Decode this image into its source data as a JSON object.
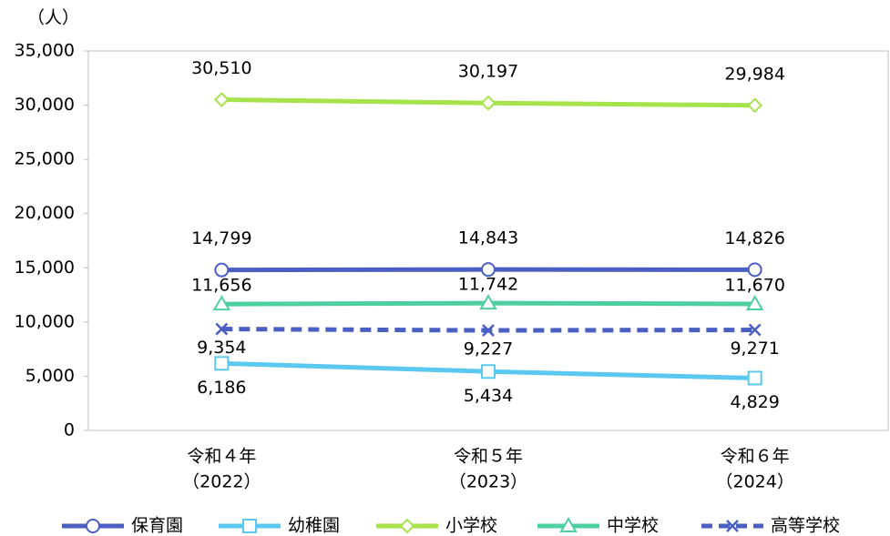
{
  "chart_data": {
    "type": "line",
    "y_label": "（人）",
    "categories": [
      "令和４年",
      "令和５年",
      "令和６年"
    ],
    "category_years": [
      "（2022）",
      "（2023）",
      "（2024）"
    ],
    "ylim": [
      0,
      35000
    ],
    "yticks": [
      0,
      {
        "value": 5000,
        "label": "5,000"
      },
      {
        "value": 10000,
        "label": "10,000"
      },
      {
        "value": 15000,
        "label": "15,000"
      },
      {
        "value": 20000,
        "label": "20,000"
      },
      {
        "value": 25000,
        "label": "25,000"
      },
      {
        "value": 30000,
        "label": "30,000"
      },
      {
        "value": 35000,
        "label": "35,000"
      }
    ],
    "grid": false,
    "legend": "bottom",
    "series": [
      {
        "name": "保育園",
        "color": "#4a5fc1",
        "marker": "circle",
        "values": [
          14799,
          14843,
          14826
        ],
        "value_labels": [
          "14,799",
          "14,843",
          "14,826"
        ]
      },
      {
        "name": "幼稚園",
        "color": "#5bc8ef",
        "marker": "square",
        "values": [
          6186,
          5434,
          4829
        ],
        "value_labels": [
          "6,186",
          "5,434",
          "4,829"
        ]
      },
      {
        "name": "小学校",
        "color": "#a6e24a",
        "marker": "diamond",
        "values": [
          30510,
          30197,
          29984
        ],
        "value_labels": [
          "30,510",
          "30,197",
          "29,984"
        ]
      },
      {
        "name": "中学校",
        "color": "#4ecf9f",
        "marker": "triangle",
        "values": [
          11656,
          11742,
          11670
        ],
        "value_labels": [
          "11,656",
          "11,742",
          "11,670"
        ]
      },
      {
        "name": "高等学校",
        "color": "#4a5fc1",
        "marker": "x",
        "dashed": true,
        "values": [
          9354,
          9227,
          9271
        ],
        "value_labels": [
          "9,354",
          "9,227",
          "9,271"
        ]
      }
    ]
  }
}
